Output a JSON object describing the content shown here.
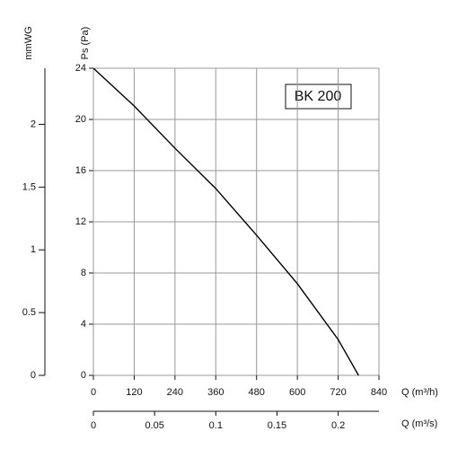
{
  "chart_data": {
    "type": "line",
    "x_label": "Q (m³/h)",
    "y_label": "Ps (Pa)",
    "y2_label": "mmWG",
    "x2_label": "Q (m³/s)",
    "annotation": "BK 200",
    "x": [
      0,
      120,
      240,
      360,
      480,
      600,
      720,
      780
    ],
    "series": [
      {
        "name": "BK 200",
        "color": "#000000",
        "values": [
          24,
          21.05,
          17.75,
          14.6,
          10.95,
          7.16,
          2.8,
          0
        ]
      }
    ],
    "xlim": [
      0,
      840
    ],
    "xticks": [
      0,
      120,
      240,
      360,
      480,
      600,
      720,
      840
    ],
    "ylim": [
      0,
      24
    ],
    "yticks": [
      0,
      4,
      8,
      12,
      16,
      20,
      24
    ],
    "y2lim": [
      0,
      2.447
    ],
    "y2ticks": [
      0,
      0.5,
      1,
      1.5,
      2
    ],
    "x2lim": [
      0,
      0.2333
    ],
    "x2ticks": [
      0,
      0.05,
      0.1,
      0.15,
      0.2
    ],
    "grid": true
  }
}
